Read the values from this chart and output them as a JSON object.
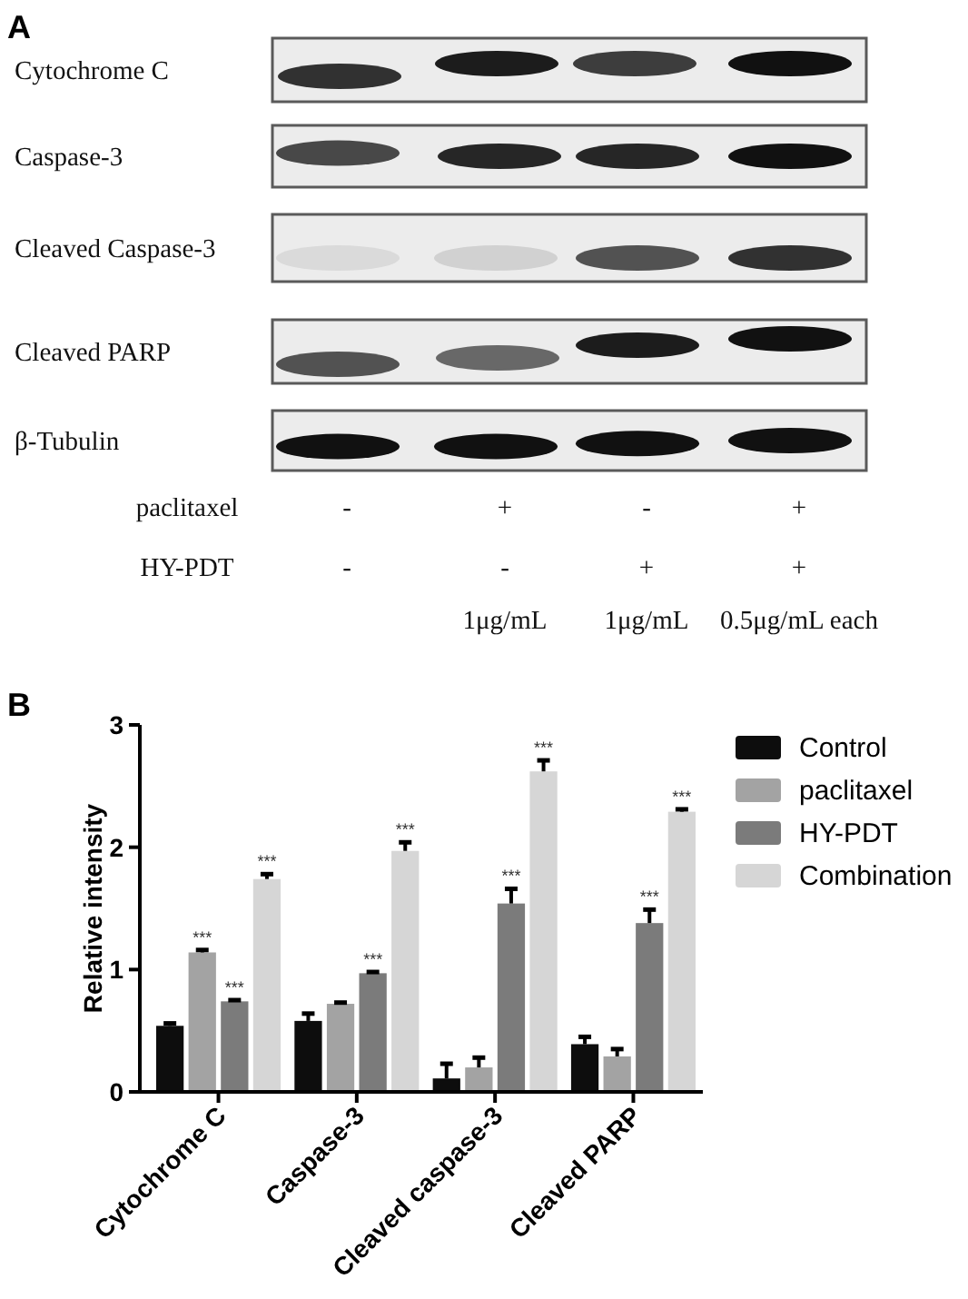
{
  "chart_data": [
    {
      "type": "other",
      "title": "A",
      "annotations": [
        "Cytochrome C",
        "Caspase-3",
        "Cleaved Caspase-3",
        "Cleaved PARP",
        "β-Tubulin",
        "paclitaxel",
        "-",
        "+",
        "-",
        "+",
        "HY-PDT",
        "-",
        "-",
        "+",
        "+",
        "1μg/mL",
        "1μg/mL",
        "0.5μg/mL each"
      ]
    },
    {
      "type": "bar",
      "title": "B",
      "categories": [
        "Cytochrome C",
        "Caspase-3",
        "Cleaved caspase-3",
        "Cleaved PARP"
      ],
      "ylabel": "Relative intensity",
      "ylim": [
        0,
        3
      ],
      "yticks": [
        0,
        1,
        2,
        3
      ],
      "legend": "top right",
      "series": [
        {
          "name": "Control",
          "color": "#0d0d0d",
          "values": [
            0.54,
            0.58,
            0.11,
            0.39
          ],
          "errors": [
            [
              0.54,
              0.56
            ],
            [
              0.58,
              0.64
            ],
            [
              0.11,
              0.23
            ],
            [
              0.39,
              0.45
            ]
          ]
        },
        {
          "name": "paclitaxel",
          "color": "#a3a3a3",
          "values": [
            1.14,
            0.72,
            0.2,
            0.29
          ],
          "errors": [
            [
              1.14,
              1.16
            ],
            [
              0.72,
              0.73
            ],
            [
              0.2,
              0.28
            ],
            [
              0.29,
              0.35
            ]
          ],
          "value_labels": [
            "***",
            null,
            null,
            null
          ]
        },
        {
          "name": "HY-PDT",
          "color": "#7b7b7b",
          "values": [
            0.74,
            0.97,
            1.54,
            1.38
          ],
          "errors": [
            [
              0.74,
              0.75
            ],
            [
              0.97,
              0.98
            ],
            [
              1.54,
              1.66
            ],
            [
              1.38,
              1.49
            ]
          ],
          "value_labels": [
            "***",
            "***",
            "***",
            "***"
          ]
        },
        {
          "name": "Combination",
          "color": "#d6d6d6",
          "values": [
            1.74,
            1.97,
            2.62,
            2.29
          ],
          "errors": [
            [
              1.74,
              1.78
            ],
            [
              1.97,
              2.04
            ],
            [
              2.62,
              2.71
            ],
            [
              2.29,
              2.31
            ]
          ],
          "value_labels": [
            "***",
            "***",
            "***",
            "***"
          ]
        }
      ]
    }
  ]
}
